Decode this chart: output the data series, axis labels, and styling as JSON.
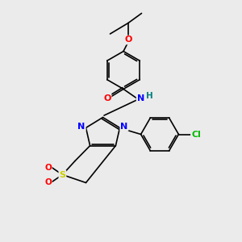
{
  "background_color": "#ebebeb",
  "atom_colors": {
    "C": "#000000",
    "N": "#0000ff",
    "O": "#ff0000",
    "S": "#cccc00",
    "Cl": "#00bb00",
    "H": "#008080"
  },
  "bond_color": "#000000",
  "bond_width": 1.2,
  "dbo": 0.07
}
